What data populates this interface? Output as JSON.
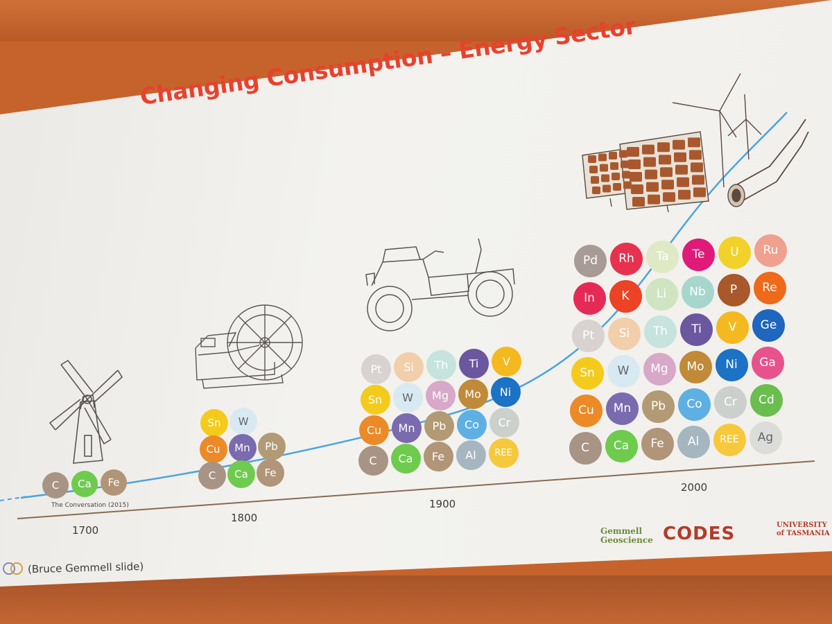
{
  "slide": {
    "title": "Changing Consumption – Energy Sector",
    "caption": "(Bruce Gemmell slide)",
    "credit": "The Conversation (2015)",
    "logos": {
      "gemmell": "Gemmell Geoscience",
      "codes": "CODES",
      "utas": "UNIVERSITY of TASMANIA"
    }
  },
  "timeline": [
    {
      "year": "1700",
      "icon": "windmill-icon",
      "elements": [
        [
          "C",
          "Ca",
          "Fe"
        ]
      ]
    },
    {
      "year": "1800",
      "icon": "steam-engine-icon",
      "elements": [
        [
          "Sn",
          "W"
        ],
        [
          "Cu",
          "Mn",
          "Pb"
        ],
        [
          "C",
          "Ca",
          "Fe"
        ]
      ]
    },
    {
      "year": "1900",
      "icon": "vintage-car-icon",
      "elements": [
        [
          "Pt",
          "Si",
          "Th",
          "Ti",
          "V"
        ],
        [
          "Sn",
          "W",
          "Mg",
          "Mo",
          "Ni"
        ],
        [
          "Cu",
          "Mn",
          "Pb",
          "Co",
          "Cr"
        ],
        [
          "C",
          "Ca",
          "Fe",
          "Al",
          "REE"
        ]
      ]
    },
    {
      "year": "2000",
      "icon": "renewable-energy-icon",
      "elements": [
        [
          "Pd",
          "Rh",
          "Ta",
          "Te",
          "U",
          "Ru"
        ],
        [
          "In",
          "K",
          "Li",
          "Nb",
          "P",
          "Re"
        ],
        [
          "Pt",
          "Si",
          "Th",
          "Ti",
          "V",
          "Ge"
        ],
        [
          "Sn",
          "W",
          "Mg",
          "Mo",
          "Ni",
          "Ga"
        ],
        [
          "Cu",
          "Mn",
          "Pb",
          "Co",
          "Cr",
          "Cd"
        ],
        [
          "C",
          "Ca",
          "Fe",
          "Al",
          "REE",
          "Ag"
        ]
      ]
    }
  ],
  "colors": {
    "title": "#e8412d",
    "curve": "#4aa3e0",
    "axis": "#8a6a52",
    "elements": {
      "C": "#a89484",
      "Ca": "#6ecb4e",
      "Fe": "#b19578",
      "Sn": "#f4cb1c",
      "W": "#d9e9f1",
      "Cu": "#ec8a28",
      "Mn": "#7a6aae",
      "Pb": "#b29a74",
      "Pt": "#d8d2d0",
      "Si": "#f2cfaa",
      "Th": "#c6e3dd",
      "Ti": "#6b57a0",
      "V": "#f4b91e",
      "Mg": "#d8a8c8",
      "Mo": "#c08a38",
      "Ni": "#1c72c4",
      "Co": "#5eb0e2",
      "Cr": "#ccd0cc",
      "Al": "#a6b6c0",
      "REE": "#f6c93c",
      "Pd": "#a89a94",
      "Rh": "#e6324e",
      "Ta": "#dfe9c6",
      "Te": "#e01a78",
      "U": "#f2d22a",
      "Ru": "#f0a08e",
      "In": "#e62a56",
      "K": "#ec4226",
      "Li": "#cfe4c0",
      "Nb": "#a6d6cc",
      "P": "#a8582a",
      "Re": "#ee6a1a",
      "Ge": "#1e66be",
      "Ga": "#e8528c",
      "Cd": "#6abe4e",
      "Ag": "#dcdcd8"
    },
    "light_text": [
      "W",
      "Pt",
      "Th",
      "Ta",
      "Li",
      "Cr",
      "Ag",
      "Si",
      "U",
      "REE",
      "Sn"
    ]
  }
}
